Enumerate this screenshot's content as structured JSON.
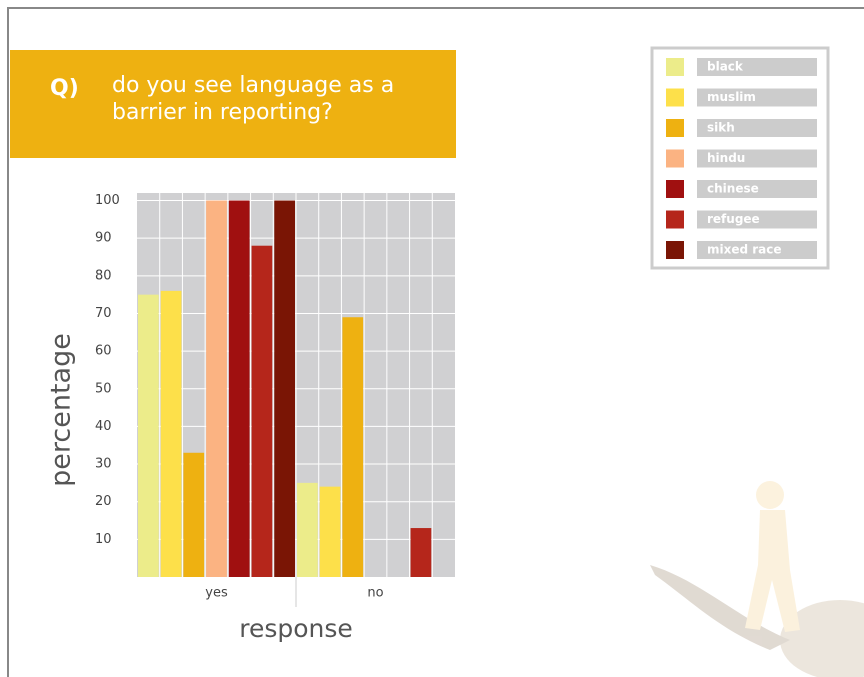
{
  "chart_data": {
    "type": "bar",
    "question_label": "Q)",
    "title": "do you see language as a barrier in reporting?",
    "xlabel": "response",
    "ylabel": "percentage",
    "categories": [
      "yes",
      "no"
    ],
    "series": [
      {
        "name": "black",
        "color": "#ecec8a",
        "values": [
          75,
          25
        ]
      },
      {
        "name": "muslim",
        "color": "#fde04a",
        "values": [
          76,
          24
        ]
      },
      {
        "name": "sikh",
        "color": "#eeb111",
        "values": [
          33,
          69
        ]
      },
      {
        "name": "hindu",
        "color": "#fbb382",
        "values": [
          100,
          0
        ]
      },
      {
        "name": "chinese",
        "color": "#a01010",
        "values": [
          100,
          0
        ]
      },
      {
        "name": "refugee",
        "color": "#b5261b",
        "values": [
          88,
          13
        ]
      },
      {
        "name": "mixed race",
        "color": "#7a1505",
        "values": [
          100,
          0
        ]
      }
    ],
    "ylim": [
      0,
      102
    ],
    "yticks": [
      10,
      20,
      30,
      40,
      50,
      60,
      70,
      80,
      90,
      100
    ],
    "grid": true,
    "legend": "upper right"
  }
}
